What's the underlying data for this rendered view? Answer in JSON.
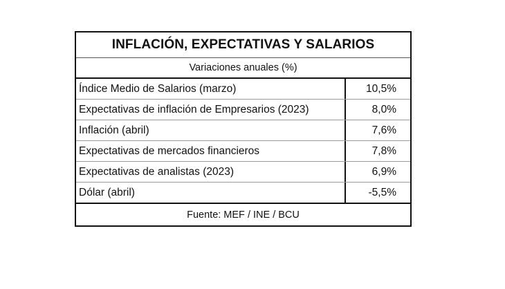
{
  "table": {
    "title": "INFLACIÓN, EXPECTATIVAS Y SALARIOS",
    "subtitle": "Variaciones anuales (%)",
    "rows": [
      {
        "label": "Índice Medio de Salarios (marzo)",
        "value": "10,5%"
      },
      {
        "label": "Expectativas de inflación de Empresarios (2023)",
        "value": "8,0%"
      },
      {
        "label": "Inflación (abril)",
        "value": "7,6%"
      },
      {
        "label": "Expectativas de mercados financieros",
        "value": "7,8%"
      },
      {
        "label": "Expectativas de analistas (2023)",
        "value": "6,9%"
      },
      {
        "label": "Dólar (abril)",
        "value": "-5,5%"
      }
    ],
    "footer": "Fuente: MEF / INE / BCU"
  }
}
